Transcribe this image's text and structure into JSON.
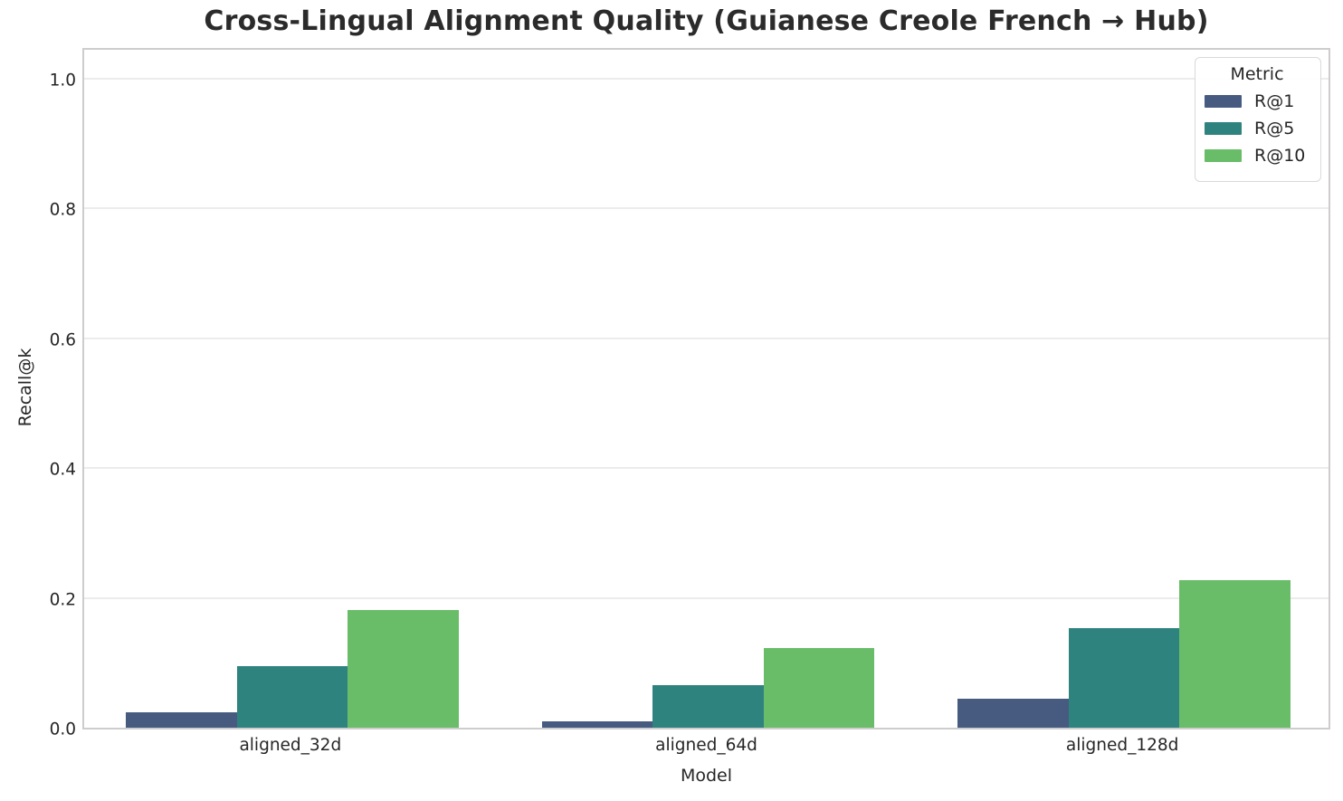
{
  "chart_data": {
    "type": "bar",
    "title": "Cross-Lingual Alignment Quality (Guianese Creole French → Hub)",
    "xlabel": "Model",
    "ylabel": "Recall@k",
    "categories": [
      "aligned_32d",
      "aligned_64d",
      "aligned_128d"
    ],
    "series": [
      {
        "name": "R@1",
        "color": "#475a80",
        "values": [
          0.024,
          0.01,
          0.044
        ]
      },
      {
        "name": "R@5",
        "color": "#2f837f",
        "values": [
          0.095,
          0.066,
          0.154
        ]
      },
      {
        "name": "R@10",
        "color": "#69bd68",
        "values": [
          0.181,
          0.123,
          0.227
        ]
      }
    ],
    "ylim": [
      0,
      1.05
    ],
    "yticks": [
      "0.0",
      "0.2",
      "0.4",
      "0.6",
      "0.8",
      "1.0"
    ],
    "grid": "horizontal",
    "legend": {
      "title": "Metric",
      "position": "upper right"
    },
    "bar_group_width_fraction": 0.8
  },
  "style": {
    "text_color": "#262626",
    "title_color": "#2b2b2b",
    "grid_color": "#ececec",
    "spine_color": "#cdcdcd",
    "background": "#ffffff"
  }
}
